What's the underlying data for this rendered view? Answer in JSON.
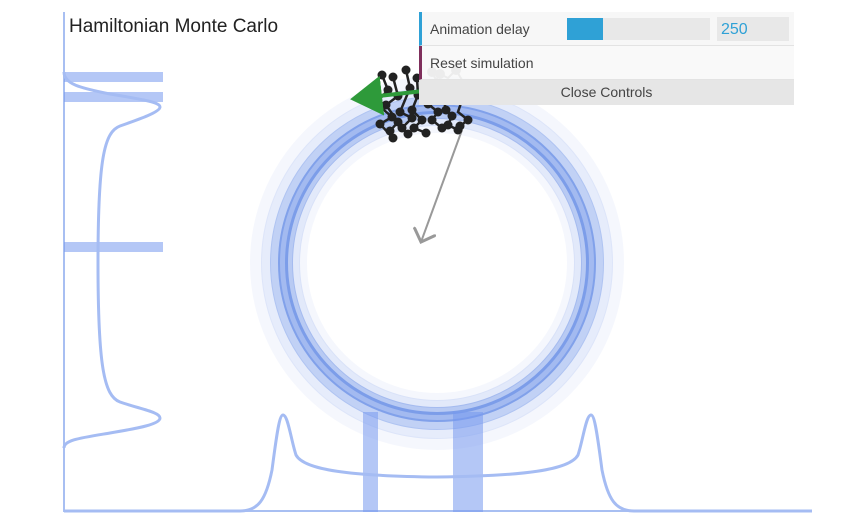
{
  "title": "Hamiltonian Monte Carlo",
  "controls": {
    "animation_delay_label": "Animation delay",
    "animation_delay_value": "250",
    "animation_delay_fraction": 0.25,
    "reset_label": "Reset simulation",
    "close_label": "Close Controls"
  },
  "colors": {
    "accent": "#2fa1d6",
    "button_accent": "#7f2f5c",
    "density_blue": "#3366dd",
    "marginal_blue": "#6f95ee",
    "momentum_arrow": "#2e9a3a",
    "gradient_arrow": "#999999",
    "trajectory": "#222222"
  }
}
